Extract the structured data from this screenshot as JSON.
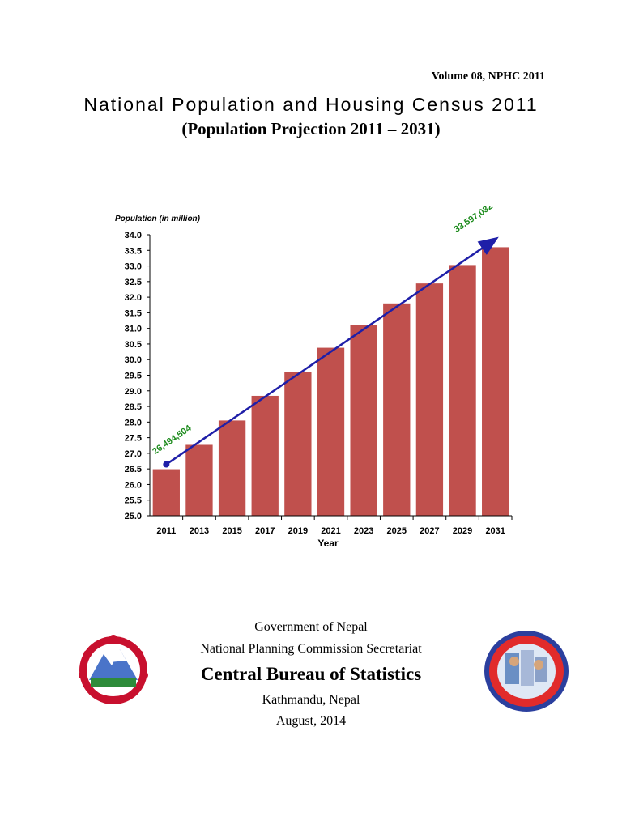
{
  "header": {
    "volume": "Volume 08, NPHC 2011",
    "title": "National Population and Housing Census 2011",
    "subtitle": "(Population Projection 2011 – 2031)"
  },
  "chart_data": {
    "type": "bar",
    "ylabel": "Population (in million)",
    "xlabel": "Year",
    "categories": [
      "2011",
      "2013",
      "2015",
      "2017",
      "2019",
      "2021",
      "2023",
      "2025",
      "2027",
      "2029",
      "2031"
    ],
    "values": [
      26.49,
      27.27,
      28.05,
      28.84,
      29.6,
      30.38,
      31.12,
      31.8,
      32.44,
      33.03,
      33.6
    ],
    "ylim": [
      25.0,
      34.0
    ],
    "yticks": [
      "25.0",
      "25.5",
      "26.0",
      "26.5",
      "27.0",
      "27.5",
      "28.0",
      "28.5",
      "29.0",
      "29.5",
      "30.0",
      "30.5",
      "31.0",
      "31.5",
      "32.0",
      "32.5",
      "33.0",
      "33.5",
      "34.0"
    ],
    "bar_color": "#c0504d",
    "trend_arrow_color": "#1f1fa8",
    "annotations": [
      {
        "text": "26,494,504",
        "color": "#1e8c1e",
        "category": "2011"
      },
      {
        "text": "33,597,032",
        "color": "#1e8c1e",
        "category": "2031"
      }
    ],
    "grid": false
  },
  "footer": {
    "government": "Government of Nepal",
    "commission": "National Planning Commission Secretariat",
    "bureau": "Central Bureau of Statistics",
    "location": "Kathmandu, Nepal",
    "date": "August, 2014"
  },
  "logos": {
    "left_icon": "nepal-coat-of-arms-icon",
    "right_icon": "census-100-years-seal-icon",
    "right_seal_text": "National Population & Housing Census 2011 Nepal"
  }
}
